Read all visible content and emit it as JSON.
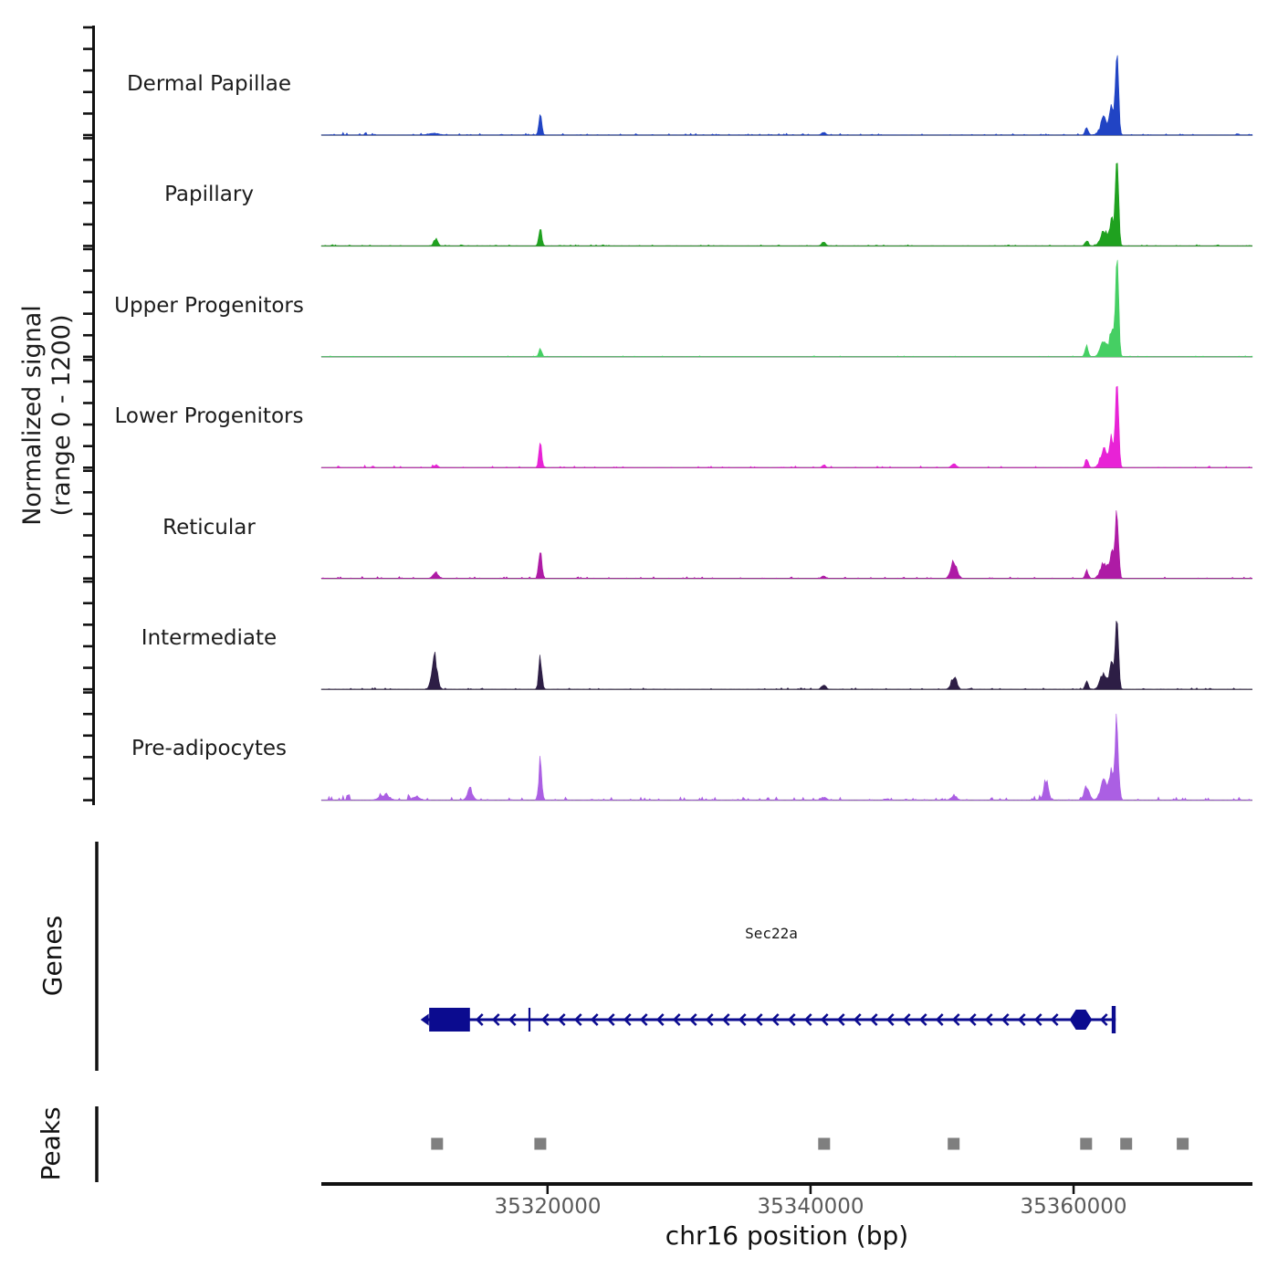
{
  "y_axis": {
    "label_line1": "Normalized signal",
    "label_line2": "(range 0 - 1200)",
    "range_min": 0,
    "range_max": 1200,
    "axis_color": "#111111"
  },
  "x_axis": {
    "title": "chr16 position (bp)",
    "chrom": "chr16",
    "min": 35302800,
    "max": 35373600,
    "ticks": [
      35320000,
      35340000,
      35360000
    ],
    "tick_labels": [
      "35320000",
      "35340000",
      "35360000"
    ],
    "tick_color": "#5a5a5a",
    "axis_color": "#111111"
  },
  "chart_data": {
    "type": "area",
    "xlabel": "chr16 position (bp)",
    "ylabel": "Normalized signal (range 0 - 1200)",
    "ylim": [
      0,
      1200
    ],
    "xlim": [
      35302800,
      35373600
    ],
    "baseline_color": "#666666",
    "tracks": [
      {
        "name": "Dermal Papillae",
        "color": "#2144c4",
        "noise": 8,
        "noise_zones": [
          [
            35303000,
            35312000,
            14
          ]
        ],
        "peaks": [
          [
            35311300,
            20,
            400
          ],
          [
            35319450,
            230,
            110
          ],
          [
            35341000,
            30,
            150
          ],
          [
            35361000,
            85,
            120
          ],
          [
            35362300,
            180,
            260
          ],
          [
            35362900,
            300,
            160
          ],
          [
            35363300,
            880,
            120
          ]
        ]
      },
      {
        "name": "Papillary",
        "color": "#1fa11f",
        "noise": 6,
        "noise_zones": [],
        "peaks": [
          [
            35311500,
            75,
            150
          ],
          [
            35319450,
            185,
            110
          ],
          [
            35341000,
            40,
            150
          ],
          [
            35361000,
            65,
            120
          ],
          [
            35362300,
            170,
            260
          ],
          [
            35362900,
            280,
            160
          ],
          [
            35363300,
            900,
            120
          ]
        ]
      },
      {
        "name": "Upper Progenitors",
        "color": "#45cf63",
        "noise": 4,
        "noise_zones": [],
        "peaks": [
          [
            35319450,
            85,
            110
          ],
          [
            35361000,
            125,
            120
          ],
          [
            35362300,
            160,
            260
          ],
          [
            35362900,
            260,
            160
          ],
          [
            35363300,
            1080,
            120
          ]
        ]
      },
      {
        "name": "Lower Progenitors",
        "color": "#e822d6",
        "noise": 8,
        "noise_zones": [
          [
            35304000,
            35312000,
            12
          ]
        ],
        "peaks": [
          [
            35311500,
            30,
            150
          ],
          [
            35319450,
            280,
            110
          ],
          [
            35341000,
            25,
            150
          ],
          [
            35350900,
            40,
            180
          ],
          [
            35361000,
            95,
            120
          ],
          [
            35362300,
            190,
            260
          ],
          [
            35362900,
            320,
            160
          ],
          [
            35363300,
            950,
            120
          ]
        ]
      },
      {
        "name": "Reticular",
        "color": "#ae1ba5",
        "noise": 8,
        "noise_zones": [
          [
            35304000,
            35312000,
            10
          ]
        ],
        "peaks": [
          [
            35311500,
            65,
            200
          ],
          [
            35319450,
            330,
            120
          ],
          [
            35341000,
            30,
            150
          ],
          [
            35350900,
            185,
            220
          ],
          [
            35361000,
            85,
            120
          ],
          [
            35362300,
            180,
            260
          ],
          [
            35362900,
            290,
            160
          ],
          [
            35363300,
            730,
            120
          ]
        ]
      },
      {
        "name": "Intermediate",
        "color": "#2d1e45",
        "noise": 7,
        "noise_zones": [
          [
            35304000,
            35312000,
            8
          ]
        ],
        "peaks": [
          [
            35311400,
            380,
            200
          ],
          [
            35319450,
            360,
            120
          ],
          [
            35341000,
            55,
            150
          ],
          [
            35350900,
            135,
            200
          ],
          [
            35361000,
            85,
            120
          ],
          [
            35362300,
            170,
            260
          ],
          [
            35362900,
            280,
            150
          ],
          [
            35363300,
            900,
            115
          ]
        ]
      },
      {
        "name": "Pre-adipocytes",
        "color": "#ab5fe3",
        "noise": 16,
        "noise_zones": [
          [
            35303000,
            35311500,
            30
          ],
          [
            35313000,
            35320000,
            12
          ],
          [
            35356000,
            35360000,
            25
          ]
        ],
        "peaks": [
          [
            35307600,
            55,
            350
          ],
          [
            35310000,
            45,
            250
          ],
          [
            35314100,
            125,
            200
          ],
          [
            35319450,
            430,
            120
          ],
          [
            35341000,
            30,
            200
          ],
          [
            35350900,
            55,
            200
          ],
          [
            35357900,
            225,
            170
          ],
          [
            35361000,
            155,
            200
          ],
          [
            35362300,
            200,
            260
          ],
          [
            35362900,
            330,
            170
          ],
          [
            35363300,
            800,
            130
          ]
        ]
      }
    ]
  },
  "genes": {
    "section_label": "Genes",
    "items": [
      {
        "name": "Sec22a",
        "start": 35310900,
        "end": 35363200,
        "strand": "-",
        "color": "#0b0b8f",
        "exons": [
          {
            "start": 35311000,
            "end": 35314100,
            "type": "utr-box"
          },
          {
            "start": 35318550,
            "end": 35318700,
            "type": "thin"
          },
          {
            "start": 35359900,
            "end": 35361200,
            "type": "hex"
          },
          {
            "start": 35362900,
            "end": 35363200,
            "type": "tall"
          }
        ]
      }
    ]
  },
  "peaks_row": {
    "section_label": "Peaks",
    "color": "#7f7f7f",
    "positions": [
      35311600,
      35319450,
      35341030,
      35350880,
      35360950,
      35364000,
      35368300
    ]
  }
}
